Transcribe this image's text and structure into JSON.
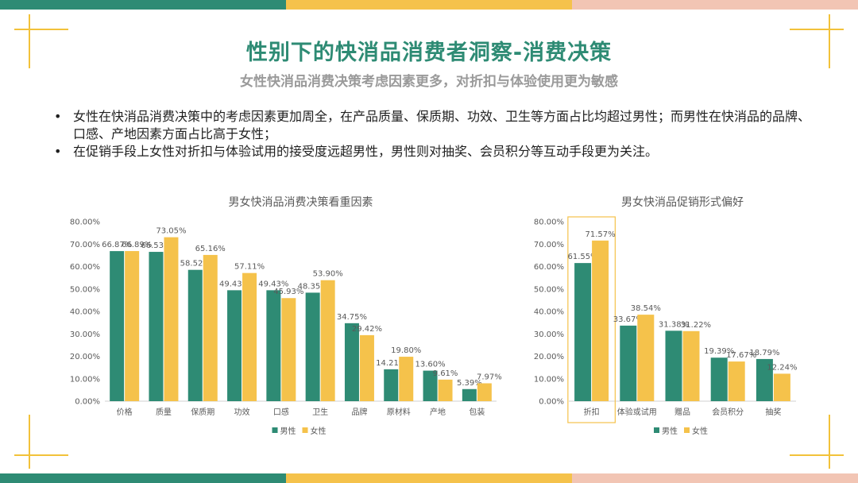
{
  "theme": {
    "teal": "#2e8b74",
    "yellow": "#f5c24b",
    "peach": "#f2c5b4",
    "title_color": "#2e8b74",
    "grid_color": "#e0e0e0"
  },
  "page": {
    "title": "性别下的快消品消费者洞察-消费决策",
    "subtitle": "女性快消品消费决策考虑因素更多，对折扣与体验使用更为敏感"
  },
  "bullets": {
    "marker": "•",
    "items": [
      "女性在快消品消费决策中的考虑因素更加周全，在产品质量、保质期、功效、卫生等方面占比均超过男性；而男性在快消品的品牌、口感、产地因素方面占比高于女性；",
      "在促销手段上女性对折扣与体验试用的接受度远超男性，男性则对抽奖、会员积分等互动手段更为关注。"
    ]
  },
  "chart_data": [
    {
      "type": "bar",
      "title": "男女快消品消费决策看重因素",
      "categories": [
        "价格",
        "质量",
        "保质期",
        "功效",
        "口感",
        "卫生",
        "品牌",
        "原材料",
        "产地",
        "包装"
      ],
      "series": [
        {
          "name": "男性",
          "color": "#2e8b74",
          "values": [
            66.87,
            66.53,
            58.52,
            49.43,
            49.43,
            48.35,
            34.75,
            14.21,
            13.6,
            5.39
          ]
        },
        {
          "name": "女性",
          "color": "#f5c24b",
          "values": [
            66.89,
            73.05,
            65.16,
            57.11,
            45.93,
            53.9,
            29.42,
            19.8,
            9.61,
            7.97
          ]
        }
      ],
      "ylim": [
        0,
        80
      ],
      "yticks": [
        "0.00%",
        "10.00%",
        "20.00%",
        "30.00%",
        "40.00%",
        "50.00%",
        "60.00%",
        "70.00%",
        "80.00%"
      ],
      "grid": false,
      "legend": "bottom",
      "value_suffix": "%"
    },
    {
      "type": "bar",
      "title": "男女快消品促销形式偏好",
      "categories": [
        "折扣",
        "体验或试用",
        "赠品",
        "会员积分",
        "抽奖"
      ],
      "series": [
        {
          "name": "男性",
          "color": "#2e8b74",
          "values": [
            61.55,
            33.67,
            31.38,
            19.39,
            18.79
          ]
        },
        {
          "name": "女性",
          "color": "#f5c24b",
          "values": [
            71.57,
            38.54,
            31.22,
            17.67,
            12.24
          ]
        }
      ],
      "ylim": [
        0,
        80
      ],
      "yticks": [
        "0.00%",
        "10.00%",
        "20.00%",
        "30.00%",
        "40.00%",
        "50.00%",
        "60.00%",
        "70.00%",
        "80.00%"
      ],
      "grid": false,
      "legend": "bottom",
      "highlight_category": "折扣",
      "value_suffix": "%"
    }
  ]
}
